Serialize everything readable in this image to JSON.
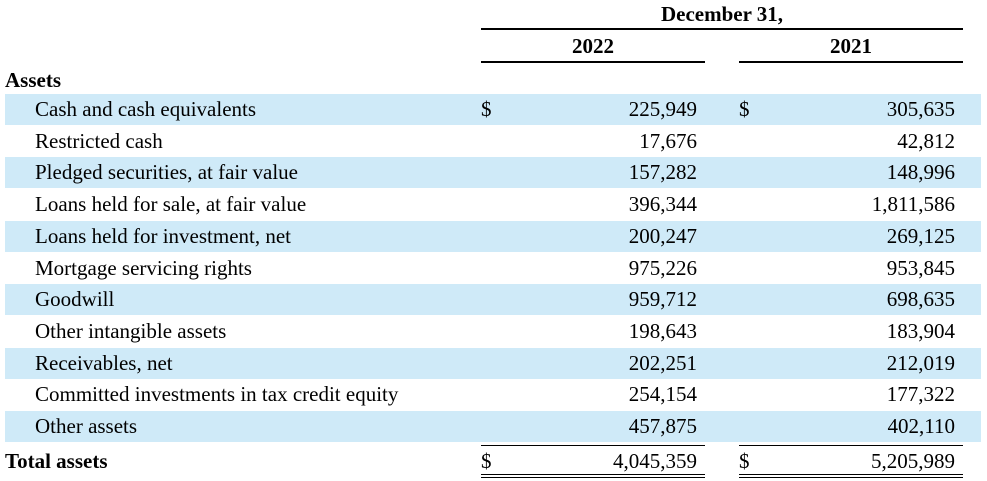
{
  "header": {
    "period_label": "December 31,",
    "year_a": "2022",
    "year_b": "2021"
  },
  "section_title": "Assets",
  "currency_symbol": "$",
  "rows": [
    {
      "label": "Cash and cash equivalents",
      "v2022": "225,949",
      "v2021": "305,635",
      "currency": true
    },
    {
      "label": "Restricted cash",
      "v2022": "17,676",
      "v2021": "42,812",
      "currency": false
    },
    {
      "label": "Pledged securities, at fair value",
      "v2022": "157,282",
      "v2021": "148,996",
      "currency": false
    },
    {
      "label": "Loans held for sale, at fair value",
      "v2022": "396,344",
      "v2021": "1,811,586",
      "currency": false
    },
    {
      "label": "Loans held for investment, net",
      "v2022": "200,247",
      "v2021": "269,125",
      "currency": false
    },
    {
      "label": "Mortgage servicing rights",
      "v2022": "975,226",
      "v2021": "953,845",
      "currency": false
    },
    {
      "label": "Goodwill",
      "v2022": "959,712",
      "v2021": "698,635",
      "currency": false
    },
    {
      "label": "Other intangible assets",
      "v2022": "198,643",
      "v2021": "183,904",
      "currency": false
    },
    {
      "label": "Receivables, net",
      "v2022": "202,251",
      "v2021": "212,019",
      "currency": false
    },
    {
      "label": "Committed investments in tax credit equity",
      "v2022": "254,154",
      "v2021": "177,322",
      "currency": false
    },
    {
      "label": "Other assets",
      "v2022": "457,875",
      "v2021": "402,110",
      "currency": false
    }
  ],
  "total": {
    "label": "Total assets",
    "v2022": "4,045,359",
    "v2021": "5,205,989"
  },
  "colors": {
    "row_shade": "#cfeaf8"
  }
}
